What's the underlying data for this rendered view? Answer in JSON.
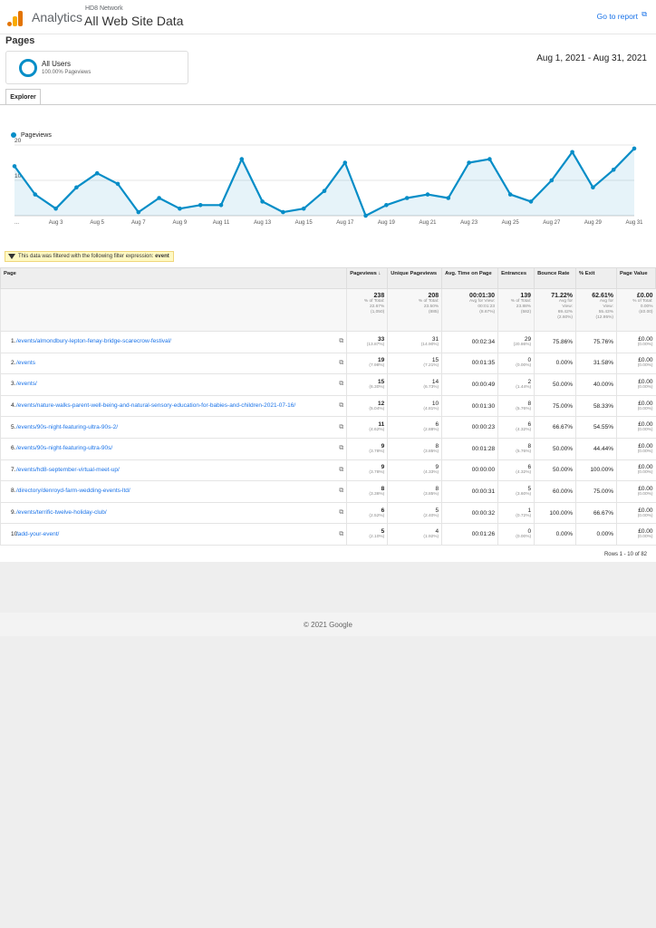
{
  "header": {
    "brand": "Analytics",
    "account_small": "HD8 Network",
    "account_big": "All Web Site Data",
    "goto_label": "Go to report"
  },
  "page_title": "Pages",
  "segment": {
    "name": "All Users",
    "sub": "100.00% Pageviews"
  },
  "date_range": "Aug 1, 2021 - Aug 31, 2021",
  "tabs": {
    "explorer": "Explorer"
  },
  "chart_data": {
    "type": "area",
    "series": [
      {
        "name": "Pageviews",
        "color": "#058dc7",
        "values": [
          14,
          6,
          2,
          8,
          12,
          9,
          1,
          5,
          2,
          3,
          3,
          16,
          4,
          1,
          2,
          7,
          15,
          0,
          3,
          5,
          6,
          5,
          15,
          16,
          6,
          4,
          10,
          18,
          8,
          13,
          19
        ]
      }
    ],
    "x": [
      "Aug 1",
      "Aug 2",
      "Aug 3",
      "Aug 4",
      "Aug 5",
      "Aug 6",
      "Aug 7",
      "Aug 8",
      "Aug 9",
      "Aug 10",
      "Aug 11",
      "Aug 12",
      "Aug 13",
      "Aug 14",
      "Aug 15",
      "Aug 16",
      "Aug 17",
      "Aug 18",
      "Aug 19",
      "Aug 20",
      "Aug 21",
      "Aug 22",
      "Aug 23",
      "Aug 24",
      "Aug 25",
      "Aug 26",
      "Aug 27",
      "Aug 28",
      "Aug 29",
      "Aug 30",
      "Aug 31"
    ],
    "x_tick_labels": [
      "...",
      "Aug 3",
      "Aug 5",
      "Aug 7",
      "Aug 9",
      "Aug 11",
      "Aug 13",
      "Aug 15",
      "Aug 17",
      "Aug 19",
      "Aug 21",
      "Aug 23",
      "Aug 25",
      "Aug 27",
      "Aug 29",
      "Aug 31"
    ],
    "y_ticks": [
      "20",
      "10"
    ],
    "ylim": [
      0,
      20
    ],
    "grid": true,
    "legend": "top-left"
  },
  "filter_note": {
    "text": "This data was filtered with the following filter expression:",
    "expr": "event"
  },
  "table": {
    "headers": {
      "page": "Page",
      "pageviews": "Pageviews",
      "unique": "Unique Pageviews",
      "avg_time": "Avg. Time on Page",
      "entrances": "Entrances",
      "bounce": "Bounce Rate",
      "exit": "% Exit",
      "value": "Page Value"
    },
    "totals": {
      "pageviews": "238",
      "pageviews_l1": "% of Total:",
      "pageviews_l2": "22.67%",
      "pageviews_l3": "(1,050)",
      "unique": "208",
      "unique_l1": "% of Total:",
      "unique_l2": "23.50%",
      "unique_l3": "(885)",
      "avg_time": "00:01:30",
      "avg_time_l1": "Avg for View:",
      "avg_time_l2": "00:01:23",
      "avg_time_l3": "(8.67%)",
      "entrances": "139",
      "entrances_l1": "% of Total:",
      "entrances_l2": "23.88%",
      "entrances_l3": "(582)",
      "bounce": "71.22%",
      "bounce_l1": "Avg for",
      "bounce_l2": "View:",
      "bounce_l3": "69.42%",
      "bounce_l4": "(2.60%)",
      "exit": "62.61%",
      "exit_l1": "Avg for",
      "exit_l2": "View:",
      "exit_l3": "55.43%",
      "exit_l4": "(12.95%)",
      "value": "£0.00",
      "value_l1": "% of Total:",
      "value_l2": "0.00%",
      "value_l3": "(£0.00)"
    },
    "rows": [
      {
        "idx": "1.",
        "page": "/events/almondbury-lepton-fenay-bridge-scarecrow-festival/",
        "pv": "33",
        "pv_pct": "(13.87%)",
        "uv": "31",
        "uv_pct": "(14.90%)",
        "time": "00:02:34",
        "ent": "29",
        "ent_pct": "(20.86%)",
        "bounce": "75.86%",
        "exit": "75.76%",
        "val": "£0.00",
        "val_pct": "(0.00%)"
      },
      {
        "idx": "2.",
        "page": "/events",
        "pv": "19",
        "pv_pct": "(7.98%)",
        "uv": "15",
        "uv_pct": "(7.21%)",
        "time": "00:01:35",
        "ent": "0",
        "ent_pct": "(0.00%)",
        "bounce": "0.00%",
        "exit": "31.58%",
        "val": "£0.00",
        "val_pct": "(0.00%)"
      },
      {
        "idx": "3.",
        "page": "/events/",
        "pv": "15",
        "pv_pct": "(6.30%)",
        "uv": "14",
        "uv_pct": "(6.73%)",
        "time": "00:00:49",
        "ent": "2",
        "ent_pct": "(1.44%)",
        "bounce": "50.00%",
        "exit": "40.00%",
        "val": "£0.00",
        "val_pct": "(0.00%)"
      },
      {
        "idx": "4.",
        "page": "/events/nature-walks-parent-well-being-and-natural-sensory-education-for-babies-and-children-2021-07-16/",
        "pv": "12",
        "pv_pct": "(5.04%)",
        "uv": "10",
        "uv_pct": "(4.81%)",
        "time": "00:01:30",
        "ent": "8",
        "ent_pct": "(5.76%)",
        "bounce": "75.00%",
        "exit": "58.33%",
        "val": "£0.00",
        "val_pct": "(0.00%)"
      },
      {
        "idx": "5.",
        "page": "/events/90s-night-featuring-ultra-90s-2/",
        "pv": "11",
        "pv_pct": "(4.62%)",
        "uv": "6",
        "uv_pct": "(2.88%)",
        "time": "00:00:23",
        "ent": "6",
        "ent_pct": "(4.32%)",
        "bounce": "66.67%",
        "exit": "54.55%",
        "val": "£0.00",
        "val_pct": "(0.00%)"
      },
      {
        "idx": "6.",
        "page": "/events/90s-night-featuring-ultra-90s/",
        "pv": "9",
        "pv_pct": "(3.78%)",
        "uv": "8",
        "uv_pct": "(3.85%)",
        "time": "00:01:28",
        "ent": "8",
        "ent_pct": "(5.76%)",
        "bounce": "50.00%",
        "exit": "44.44%",
        "val": "£0.00",
        "val_pct": "(0.00%)"
      },
      {
        "idx": "7.",
        "page": "/events/hd8-september-virtual-meet-up/",
        "pv": "9",
        "pv_pct": "(3.78%)",
        "uv": "9",
        "uv_pct": "(4.33%)",
        "time": "00:00:00",
        "ent": "6",
        "ent_pct": "(4.32%)",
        "bounce": "50.00%",
        "exit": "100.00%",
        "val": "£0.00",
        "val_pct": "(0.00%)"
      },
      {
        "idx": "8.",
        "page": "/directory/denroyd-farm-wedding-events-ltd/",
        "pv": "8",
        "pv_pct": "(3.36%)",
        "uv": "8",
        "uv_pct": "(3.85%)",
        "time": "00:00:31",
        "ent": "5",
        "ent_pct": "(3.60%)",
        "bounce": "60.00%",
        "exit": "75.00%",
        "val": "£0.00",
        "val_pct": "(0.00%)"
      },
      {
        "idx": "9.",
        "page": "/events/terrific-twelve-holiday-club/",
        "pv": "6",
        "pv_pct": "(2.52%)",
        "uv": "5",
        "uv_pct": "(2.40%)",
        "time": "00:00:32",
        "ent": "1",
        "ent_pct": "(0.72%)",
        "bounce": "100.00%",
        "exit": "66.67%",
        "val": "£0.00",
        "val_pct": "(0.00%)"
      },
      {
        "idx": "10.",
        "page": "/add-your-event/",
        "pv": "5",
        "pv_pct": "(2.10%)",
        "uv": "4",
        "uv_pct": "(1.92%)",
        "time": "00:01:26",
        "ent": "0",
        "ent_pct": "(0.00%)",
        "bounce": "0.00%",
        "exit": "0.00%",
        "val": "£0.00",
        "val_pct": "(0.00%)"
      }
    ]
  },
  "pager": "Rows 1 - 10 of 82",
  "footer": "© 2021 Google"
}
